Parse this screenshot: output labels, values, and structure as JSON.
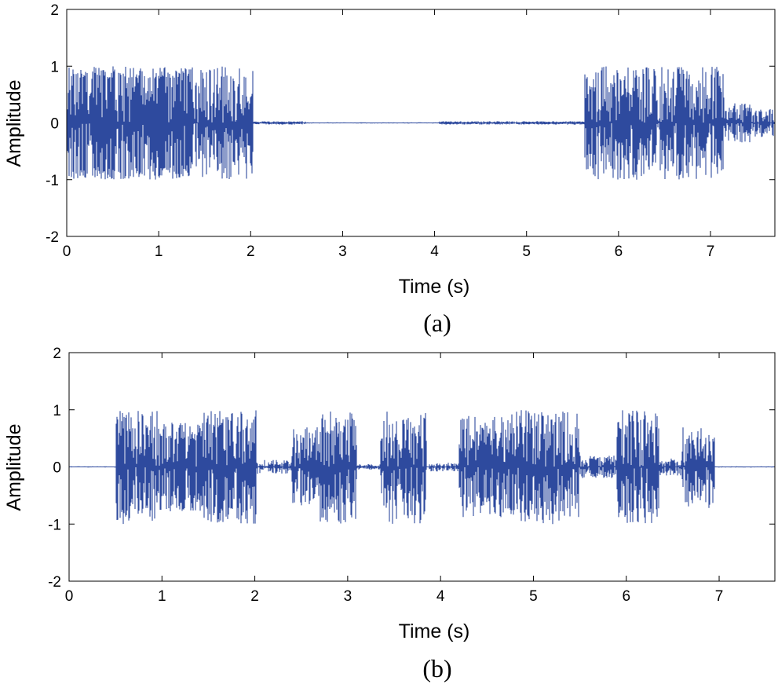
{
  "chart_data": [
    {
      "type": "line",
      "caption": "(a)",
      "xlabel": "Time (s)",
      "ylabel": "Amplitude",
      "xlim": [
        0,
        7.7
      ],
      "ylim": [
        -2,
        2
      ],
      "xticks": [
        0,
        1,
        2,
        3,
        4,
        5,
        6,
        7
      ],
      "yticks": [
        2,
        1,
        0,
        -1,
        -2
      ],
      "grid": false,
      "color": "#2E4A9E",
      "segments": [
        {
          "t0": 0.0,
          "t1": 1.35,
          "amp": 1.0,
          "low": 0.78,
          "density": 0.6
        },
        {
          "t0": 1.35,
          "t1": 2.03,
          "amp": 1.0,
          "low": 0.45,
          "density": 0.6
        },
        {
          "t0": 2.03,
          "t1": 2.6,
          "amp": 0.03,
          "low": 0.01,
          "density": 0.9
        },
        {
          "t0": 2.6,
          "t1": 4.05,
          "amp": 0.01,
          "low": 0.0,
          "density": 0.9
        },
        {
          "t0": 4.05,
          "t1": 5.63,
          "amp": 0.03,
          "low": 0.01,
          "density": 0.9
        },
        {
          "t0": 5.63,
          "t1": 7.15,
          "amp": 1.0,
          "low": 0.5,
          "density": 0.6
        },
        {
          "t0": 7.15,
          "t1": 7.45,
          "amp": 0.35,
          "low": 0.1,
          "density": 0.8
        },
        {
          "t0": 7.45,
          "t1": 7.7,
          "amp": 0.25,
          "low": 0.02,
          "density": 0.8
        }
      ]
    },
    {
      "type": "line",
      "caption": "(b)",
      "xlabel": "Time (s)",
      "ylabel": "Amplitude",
      "xlim": [
        0,
        7.6
      ],
      "ylim": [
        -2,
        2
      ],
      "xticks": [
        0,
        1,
        2,
        3,
        4,
        5,
        6,
        7
      ],
      "yticks": [
        2,
        1,
        0,
        -1,
        -2
      ],
      "grid": false,
      "color": "#2E4A9E",
      "segments": [
        {
          "t0": 0.0,
          "t1": 0.5,
          "amp": 0.01,
          "low": 0.0,
          "density": 0.9
        },
        {
          "t0": 0.5,
          "t1": 0.95,
          "amp": 1.0,
          "low": 0.6,
          "density": 0.6
        },
        {
          "t0": 0.95,
          "t1": 1.45,
          "amp": 0.78,
          "low": 0.45,
          "density": 0.6
        },
        {
          "t0": 1.45,
          "t1": 2.02,
          "amp": 1.0,
          "low": 0.6,
          "density": 0.6
        },
        {
          "t0": 2.02,
          "t1": 2.4,
          "amp": 0.12,
          "low": 0.02,
          "density": 0.8
        },
        {
          "t0": 2.4,
          "t1": 2.7,
          "amp": 0.7,
          "low": 0.3,
          "density": 0.6
        },
        {
          "t0": 2.7,
          "t1": 3.1,
          "amp": 1.0,
          "low": 0.55,
          "density": 0.6
        },
        {
          "t0": 3.1,
          "t1": 3.35,
          "amp": 0.05,
          "low": 0.01,
          "density": 0.8
        },
        {
          "t0": 3.35,
          "t1": 3.85,
          "amp": 1.0,
          "low": 0.5,
          "density": 0.6
        },
        {
          "t0": 3.85,
          "t1": 4.2,
          "amp": 0.08,
          "low": 0.01,
          "density": 0.8
        },
        {
          "t0": 4.2,
          "t1": 4.75,
          "amp": 0.9,
          "low": 0.45,
          "density": 0.6
        },
        {
          "t0": 4.75,
          "t1": 5.5,
          "amp": 1.0,
          "low": 0.55,
          "density": 0.6
        },
        {
          "t0": 5.5,
          "t1": 5.9,
          "amp": 0.2,
          "low": 0.05,
          "density": 0.7
        },
        {
          "t0": 5.9,
          "t1": 6.35,
          "amp": 1.0,
          "low": 0.55,
          "density": 0.6
        },
        {
          "t0": 6.35,
          "t1": 6.6,
          "amp": 0.15,
          "low": 0.03,
          "density": 0.7
        },
        {
          "t0": 6.6,
          "t1": 6.95,
          "amp": 0.72,
          "low": 0.3,
          "density": 0.6
        },
        {
          "t0": 6.95,
          "t1": 7.6,
          "amp": 0.01,
          "low": 0.0,
          "density": 0.9
        }
      ]
    }
  ]
}
